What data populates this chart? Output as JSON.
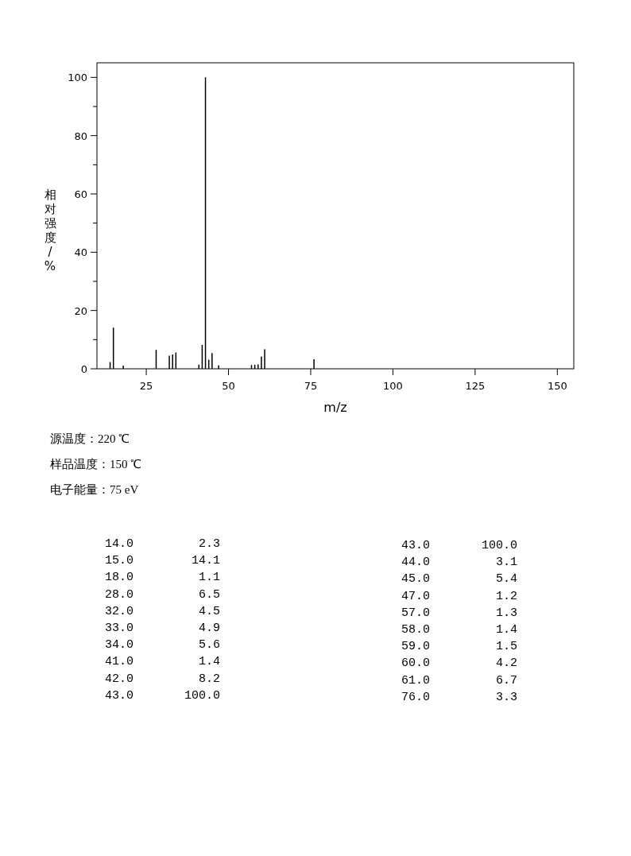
{
  "chart_data": {
    "type": "bar",
    "xlabel": "m/z",
    "ylabel": "相对强度/%",
    "x": [
      14,
      15,
      18,
      28,
      32,
      33,
      34,
      41,
      42,
      43,
      44,
      45,
      47,
      57,
      58,
      59,
      60,
      61,
      76
    ],
    "values": [
      2.3,
      14.1,
      1.1,
      6.5,
      4.5,
      4.9,
      5.6,
      1.4,
      8.2,
      100.0,
      3.1,
      5.4,
      1.2,
      1.3,
      1.4,
      1.5,
      4.2,
      6.7,
      3.3
    ],
    "color": "#000000",
    "xlim": [
      10,
      155
    ],
    "ylim": [
      0,
      105
    ],
    "xticks": [
      25,
      50,
      75,
      100,
      125,
      150
    ],
    "yticks": [
      0,
      {
        "value": 10,
        "label": null
      },
      20,
      {
        "value": 30,
        "label": null
      },
      40,
      {
        "value": 50,
        "label": null
      },
      60,
      {
        "value": 70,
        "label": null
      },
      80,
      {
        "value": 90,
        "label": null
      },
      100
    ],
    "annotations": [
      "源温度：220 ℃",
      "样品温度：150 ℃",
      "电子能量：75 eV",
      "14.0",
      "2.3",
      "15.0",
      "14.1",
      "18.0",
      "1.1",
      "28.0",
      "6.5",
      "32.0",
      "4.5",
      "33.0",
      "4.9",
      "34.0",
      "5.6",
      "41.0",
      "1.4",
      "42.0",
      "8.2",
      "43.0",
      "100.0",
      "43.0",
      "100.0",
      "44.0",
      "3.1",
      "45.0",
      "5.4",
      "47.0",
      "1.2",
      "57.0",
      "1.3",
      "58.0",
      "1.4",
      "59.0",
      "1.5",
      "60.0",
      "4.2",
      "61.0",
      "6.7",
      "76.0",
      "3.3"
    ]
  }
}
